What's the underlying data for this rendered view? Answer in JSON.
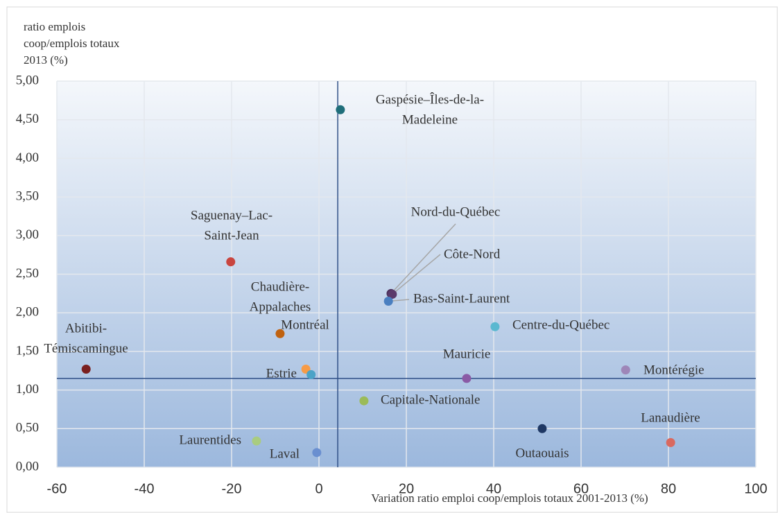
{
  "chart_data": {
    "type": "scatter",
    "ylabel": [
      "ratio emplois",
      "coop/emplois totaux",
      "2013 (%)"
    ],
    "xlabel": "Variation ratio emploi coop/emplois totaux 2001-2013 (%)",
    "labels": [
      [
        "Gaspésie–Îles-de-la-",
        "Madeleine"
      ],
      [
        "Saguenay–Lac-",
        "Saint-Jean"
      ],
      [
        "Nord-du-Québec"
      ],
      [
        "Côte-Nord"
      ],
      [
        "Bas-Saint-Laurent"
      ],
      [
        "Centre-du-Québec"
      ],
      [
        "Chaudière-",
        "Appalaches"
      ],
      [
        "Abitibi-",
        "Témiscamingue"
      ],
      [
        "Montréal"
      ],
      [
        "Estrie"
      ],
      [
        "Mauricie"
      ],
      [
        "Montérégie"
      ],
      [
        "Capitale-Nationale"
      ],
      [
        "Outaouais"
      ],
      [
        "Lanaudière"
      ],
      [
        "Laurentides"
      ],
      [
        "Laval"
      ]
    ],
    "x": [
      4.9,
      -20.2,
      16.5,
      16.8,
      15.9,
      40.3,
      -8.9,
      -53.3,
      -3.0,
      -1.8,
      33.8,
      70.2,
      10.3,
      51.1,
      80.5,
      -14.3,
      -0.5
    ],
    "y": [
      4.63,
      2.66,
      2.25,
      2.24,
      2.15,
      1.82,
      1.73,
      1.27,
      1.27,
      1.2,
      1.15,
      1.26,
      0.86,
      0.5,
      0.32,
      0.34,
      0.19
    ],
    "colors": [
      "#1f6e7a",
      "#c9453f",
      "#4b2f5a",
      "#5b3a6b",
      "#4a7fc0",
      "#5ab8d0",
      "#c0620f",
      "#7a1f1f",
      "#f79b46",
      "#4ba3c7",
      "#8a5aa5",
      "#9e86b8",
      "#9bbb59",
      "#1f3864",
      "#d9695f",
      "#a9cc80",
      "#6a8fd0"
    ],
    "vline": 4.3,
    "hline": 1.15,
    "xlim": [
      -60,
      100
    ],
    "xticks": [
      -60,
      -40,
      -20,
      0,
      20,
      40,
      60,
      80,
      100
    ],
    "ylim": [
      0,
      5
    ],
    "yticks": [
      {
        "value": 0,
        "label": "0,00"
      },
      {
        "value": 0.5,
        "label": "0,50"
      },
      {
        "value": 1,
        "label": "1,00"
      },
      {
        "value": 1.5,
        "label": "1,50"
      },
      {
        "value": 2,
        "label": "2,00"
      },
      {
        "value": 2.5,
        "label": "2,50"
      },
      {
        "value": 3,
        "label": "3,00"
      },
      {
        "value": 3.5,
        "label": "3,50"
      },
      {
        "value": 4,
        "label": "4,00"
      },
      {
        "value": 4.5,
        "label": "4,50"
      },
      {
        "value": 5,
        "label": "5,00"
      }
    ],
    "grid": true
  }
}
